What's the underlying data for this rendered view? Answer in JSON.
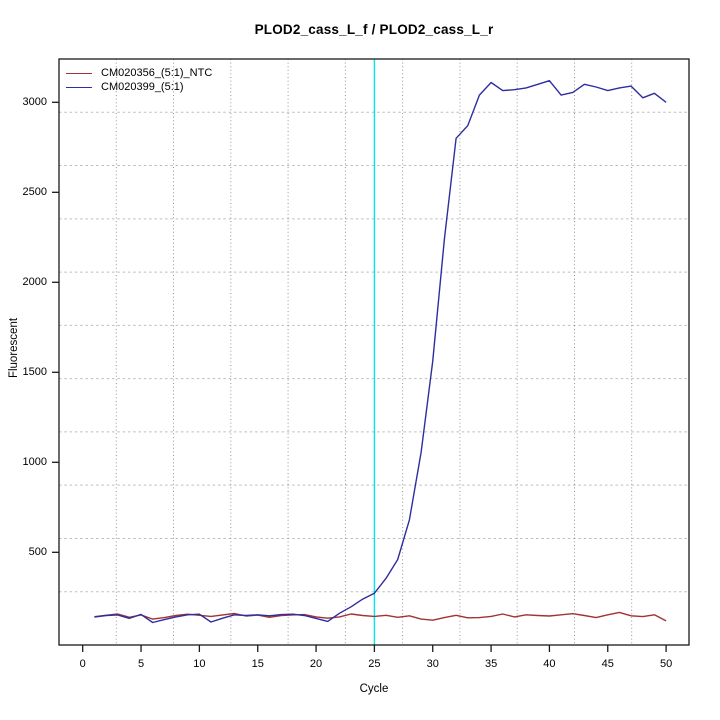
{
  "chart_data": {
    "type": "line",
    "title": "PLOD2_cass_L_f / PLOD2_cass_L_r",
    "xlabel": "Cycle",
    "ylabel": "Fluorescent",
    "x_ticks": [
      0,
      5,
      10,
      15,
      20,
      25,
      30,
      35,
      40,
      45,
      50
    ],
    "y_ticks": [
      500,
      1000,
      1500,
      2000,
      2500,
      3000
    ],
    "xlim": [
      -2,
      52
    ],
    "ylim": [
      -10,
      3240
    ],
    "grid": {
      "style": "dotted",
      "divisions": 11,
      "h_color": "#bdbdbd",
      "v_color": "#8a8a8a"
    },
    "threshold_line": {
      "x": 25,
      "orientation": "vertical",
      "color": "#00e8e8"
    },
    "legend": {
      "position": "top-left"
    },
    "x": [
      1,
      2,
      3,
      4,
      5,
      6,
      7,
      8,
      9,
      10,
      11,
      12,
      13,
      14,
      15,
      16,
      17,
      18,
      19,
      20,
      21,
      22,
      23,
      24,
      25,
      26,
      27,
      28,
      29,
      30,
      31,
      32,
      33,
      34,
      35,
      36,
      37,
      38,
      39,
      40,
      41,
      42,
      43,
      44,
      45,
      46,
      47,
      48,
      49,
      50
    ],
    "series": [
      {
        "name": "CM020356_(5:1)_NTC",
        "color": "#a03333",
        "values": [
          142,
          150,
          157,
          139,
          152,
          129,
          137,
          149,
          156,
          150,
          144,
          152,
          160,
          146,
          151,
          139,
          149,
          152,
          154,
          141,
          134,
          141,
          157,
          149,
          144,
          150,
          139,
          147,
          129,
          123,
          137,
          150,
          136,
          137,
          144,
          157,
          141,
          153,
          149,
          146,
          153,
          159,
          149,
          137,
          153,
          166,
          147,
          143,
          153,
          119
        ]
      },
      {
        "name": "CM020399_(5:1)",
        "color": "#2e2e9e",
        "values": [
          140,
          149,
          152,
          133,
          155,
          110,
          126,
          141,
          153,
          156,
          113,
          134,
          153,
          149,
          153,
          147,
          154,
          156,
          149,
          133,
          116,
          161,
          197,
          240,
          273,
          356,
          460,
          680,
          1055,
          1560,
          2240,
          2800,
          2870,
          3040,
          3110,
          3065,
          3070,
          3080,
          3100,
          3120,
          3040,
          3055,
          3100,
          3085,
          3065,
          3080,
          3090,
          3025,
          3050,
          3000
        ]
      }
    ]
  }
}
